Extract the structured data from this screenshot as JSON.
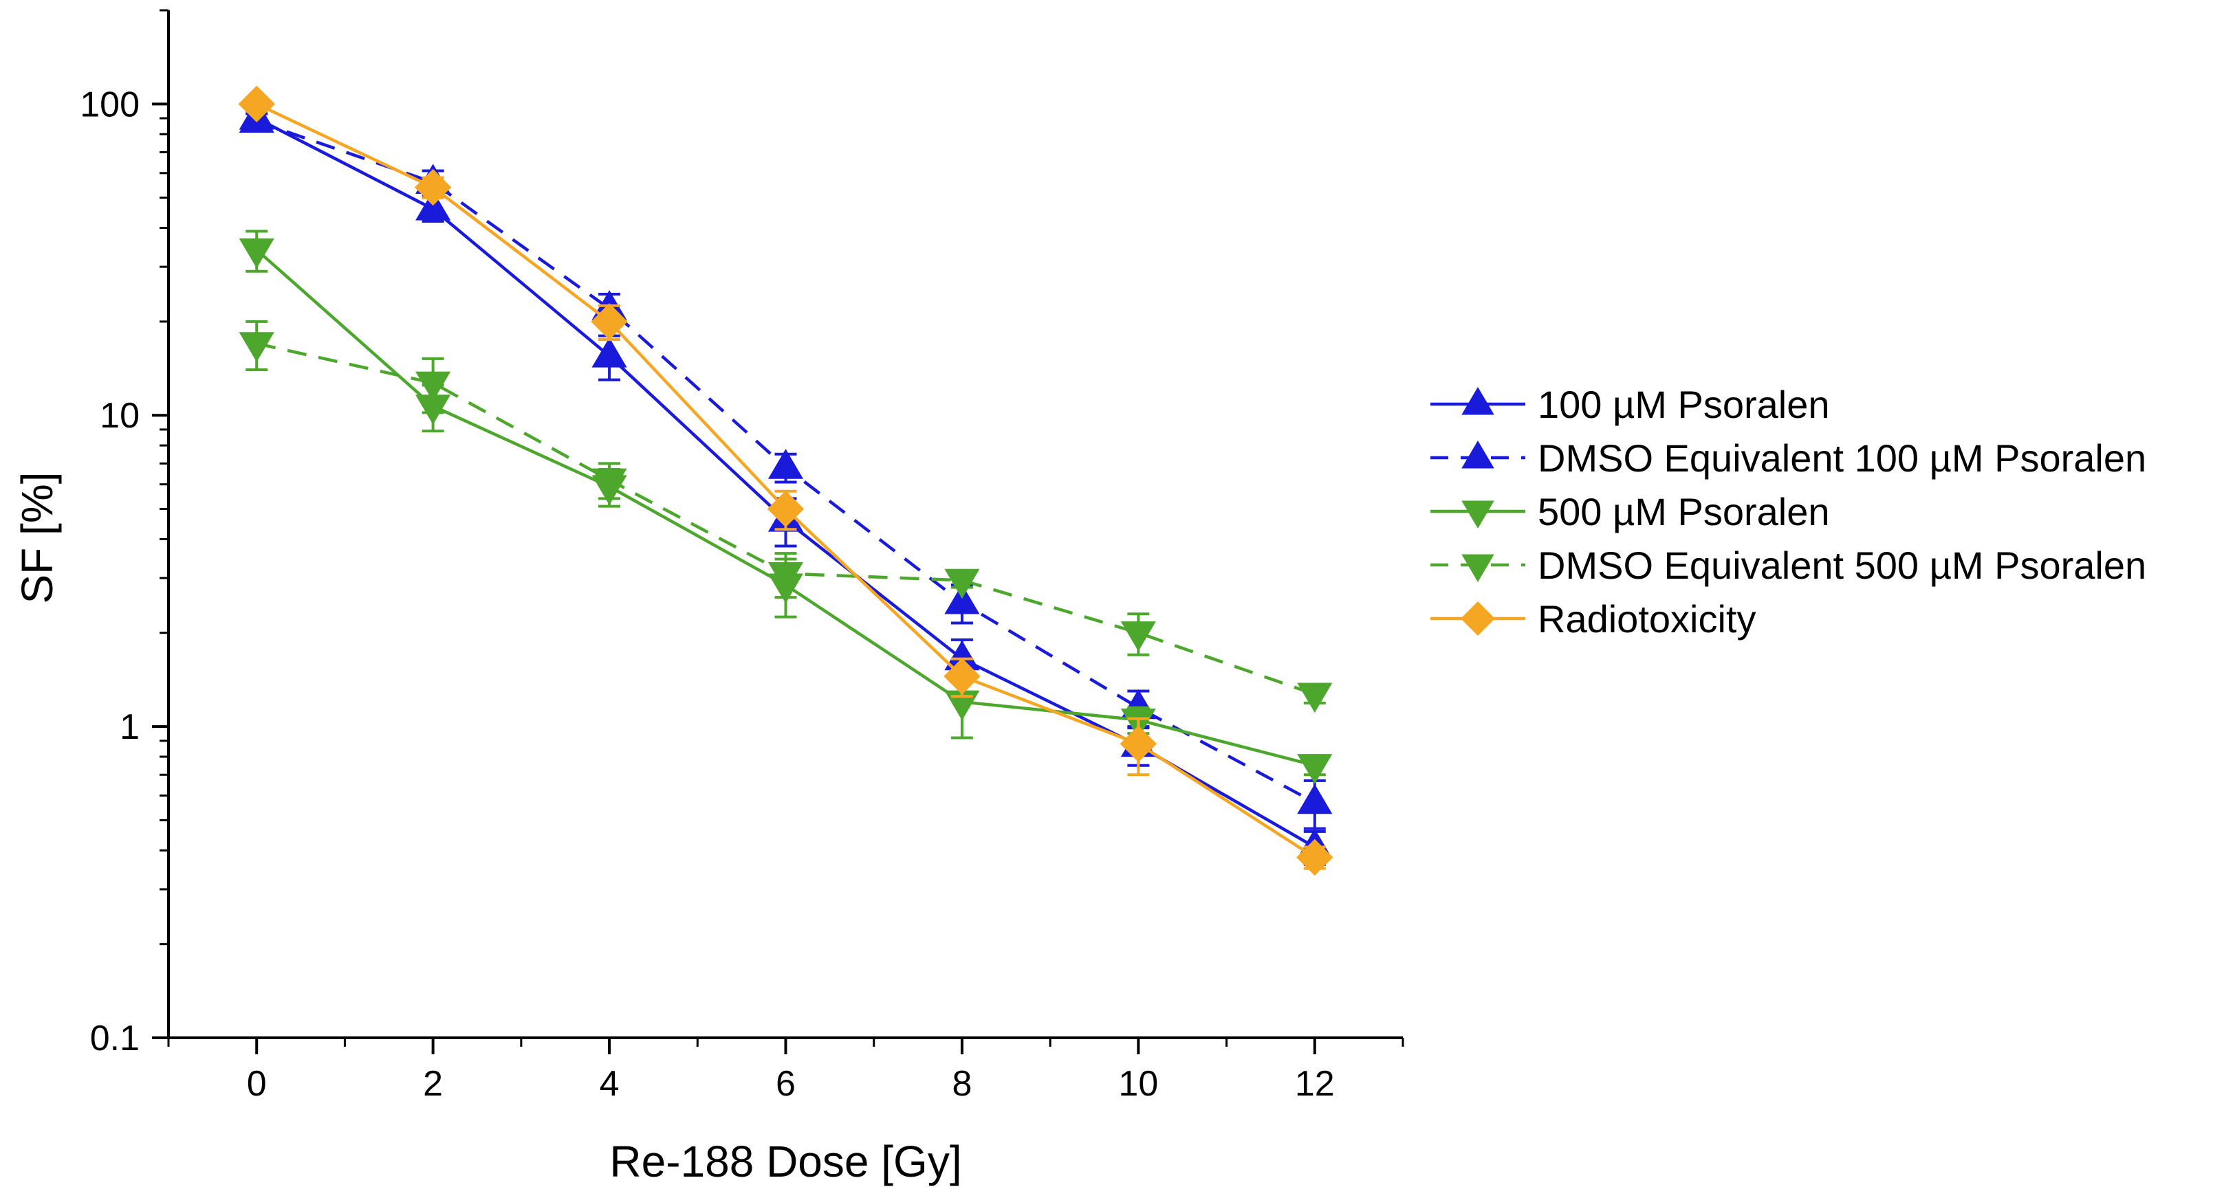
{
  "chart_data": {
    "type": "line",
    "title": "",
    "xlabel": "Re-188 Dose [Gy]",
    "ylabel": "SF [%]",
    "xscale": "linear",
    "yscale": "log",
    "xlim": [
      -1,
      13
    ],
    "ylim": [
      0.1,
      200
    ],
    "x_ticks": [
      0,
      2,
      4,
      6,
      8,
      10,
      12
    ],
    "x_tick_labels": [
      "0",
      "2",
      "4",
      "6",
      "8",
      "10",
      "12"
    ],
    "y_ticks": [
      0.1,
      1,
      10,
      100
    ],
    "y_tick_labels": [
      "0.1",
      "1",
      "10",
      "100"
    ],
    "grid": false,
    "legend_position": "right",
    "x": [
      0,
      2,
      4,
      6,
      8,
      10,
      12
    ],
    "series": [
      {
        "name": "100 µM Psoralen",
        "color": "#1a1adb",
        "line_style": "solid",
        "marker": "triangle-up",
        "values": [
          90,
          46,
          15.5,
          4.6,
          1.65,
          0.87,
          0.41
        ],
        "error": [
          5,
          4,
          2.5,
          0.8,
          0.25,
          0.12,
          0.05
        ]
      },
      {
        "name": "DMSO Equivalent 100 µM Psoralen",
        "color": "#1a1adb",
        "line_style": "dashed",
        "marker": "triangle-up",
        "values": [
          88,
          56,
          22,
          6.8,
          2.5,
          1.15,
          0.57
        ],
        "error": [
          5,
          5,
          2.5,
          0.7,
          0.35,
          0.15,
          0.1
        ]
      },
      {
        "name": "500 µM Psoralen",
        "color": "#4ca72c",
        "line_style": "solid",
        "marker": "triangle-down",
        "values": [
          34,
          10.7,
          5.9,
          2.85,
          1.2,
          1.05,
          0.75
        ],
        "error": [
          5,
          1.8,
          0.8,
          0.6,
          0.28,
          0.1,
          0.05
        ]
      },
      {
        "name": "DMSO Equivalent 500 µM Psoralen",
        "color": "#4ca72c",
        "line_style": "dashed",
        "marker": "triangle-down",
        "values": [
          17,
          12.7,
          6.2,
          3.1,
          2.95,
          2.0,
          1.27
        ],
        "error": [
          3,
          2.5,
          0.8,
          0.5,
          0.15,
          0.3,
          0.08
        ]
      },
      {
        "name": "Radiotoxicity",
        "color": "#f5a623",
        "line_style": "solid",
        "marker": "diamond",
        "values": [
          100,
          54,
          20,
          5.0,
          1.45,
          0.88,
          0.38
        ],
        "error": [
          5,
          4,
          2.5,
          0.7,
          0.2,
          0.18,
          0.03
        ]
      }
    ]
  }
}
